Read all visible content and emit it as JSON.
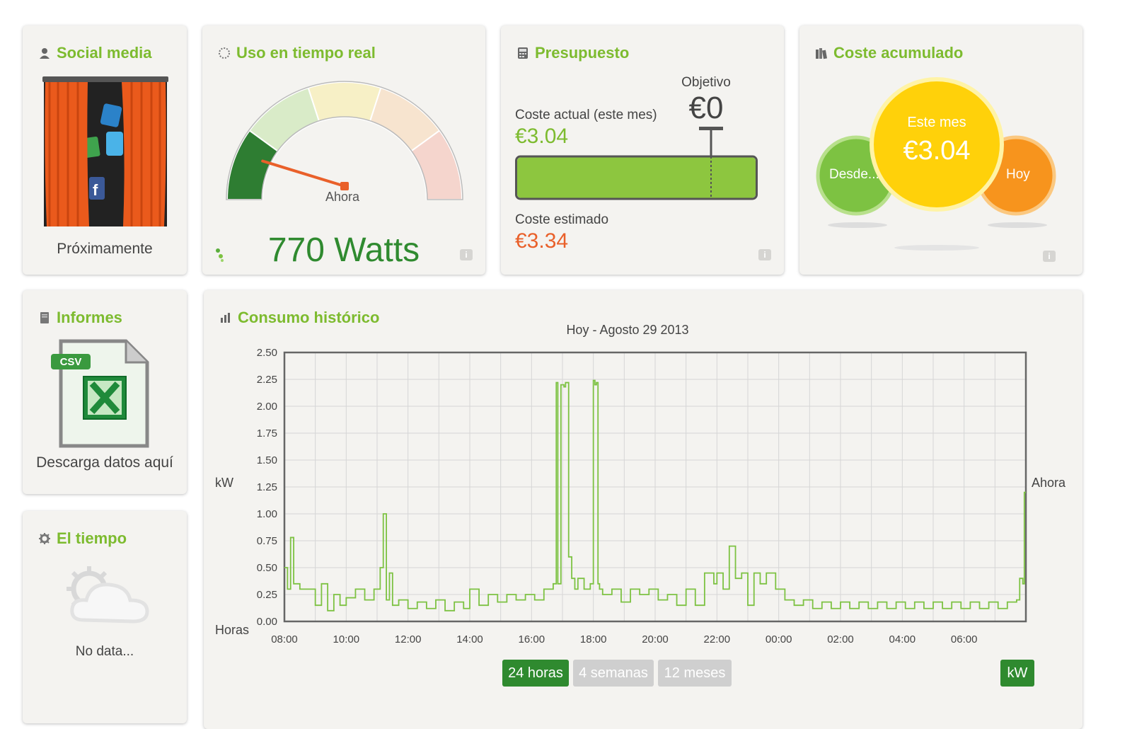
{
  "social": {
    "title": "Social media",
    "label": "Próximamente"
  },
  "realtime": {
    "title": "Uso en tiempo real",
    "needle_label": "Ahora",
    "value": "770 Watts",
    "gauge_fraction": 0.14
  },
  "budget": {
    "title": "Presupuesto",
    "target_label": "Objetivo",
    "target_value": "€0",
    "current_label": "Coste actual (este mes)",
    "current_value": "€3.04",
    "estimate_label": "Coste estimado",
    "estimate_value": "€3.34",
    "bar_fill_fraction": 1.0
  },
  "cumulative": {
    "title": "Coste acumulado",
    "left_bubble": "Desde...",
    "center_label": "Este mes",
    "center_value": "€3.04",
    "right_bubble": "Hoy"
  },
  "reports": {
    "title": "Informes",
    "badge": "CSV",
    "label": "Descarga datos aquí"
  },
  "weather": {
    "title": "El tiempo",
    "label": "No data..."
  },
  "history": {
    "title": "Consumo histórico",
    "buttons": [
      "24 horas",
      "4 semanas",
      "12 meses"
    ],
    "unit_button": "kW"
  },
  "chart_data": {
    "type": "line",
    "title": "Hoy - Agosto 29 2013",
    "ylabel": "kW",
    "xlabel": "Horas",
    "end_label": "Ahora",
    "ylim": [
      0,
      2.5
    ],
    "yticks": [
      "0.00",
      "0.25",
      "0.50",
      "0.75",
      "1.00",
      "1.25",
      "1.50",
      "1.75",
      "2.00",
      "2.25",
      "2.50"
    ],
    "xticks": [
      "08:00",
      "10:00",
      "12:00",
      "14:00",
      "16:00",
      "18:00",
      "20:00",
      "22:00",
      "00:00",
      "02:00",
      "04:00",
      "06:00"
    ],
    "xlim_hours": [
      8,
      32
    ],
    "grid": true,
    "series": [
      {
        "color": "#7dc242",
        "x": [
          8.0,
          8.1,
          8.2,
          8.3,
          8.5,
          8.7,
          9.0,
          9.2,
          9.4,
          9.6,
          9.8,
          10.0,
          10.3,
          10.6,
          10.9,
          11.1,
          11.2,
          11.3,
          11.4,
          11.5,
          11.7,
          12.0,
          12.3,
          12.6,
          12.9,
          13.2,
          13.5,
          13.8,
          14.0,
          14.3,
          14.6,
          14.9,
          15.2,
          15.5,
          15.8,
          16.1,
          16.4,
          16.7,
          16.8,
          16.85,
          16.95,
          17.05,
          17.1,
          17.2,
          17.3,
          17.4,
          17.5,
          17.7,
          17.9,
          18.0,
          18.05,
          18.1,
          18.15,
          18.2,
          18.3,
          18.6,
          18.9,
          19.2,
          19.5,
          19.8,
          20.1,
          20.4,
          20.7,
          21.0,
          21.3,
          21.6,
          21.9,
          22.0,
          22.2,
          22.4,
          22.6,
          22.8,
          23.0,
          23.2,
          23.4,
          23.6,
          23.9,
          24.2,
          24.5,
          24.8,
          25.1,
          25.4,
          25.7,
          26.0,
          26.3,
          26.6,
          26.9,
          27.2,
          27.5,
          27.8,
          28.1,
          28.4,
          28.7,
          29.0,
          29.3,
          29.6,
          29.9,
          30.2,
          30.5,
          30.8,
          31.1,
          31.4,
          31.7,
          31.8,
          31.9,
          31.95,
          32.0
        ],
        "values": [
          0.5,
          0.3,
          0.78,
          0.35,
          0.3,
          0.3,
          0.15,
          0.35,
          0.1,
          0.25,
          0.15,
          0.22,
          0.3,
          0.2,
          0.3,
          0.5,
          1.0,
          0.2,
          0.45,
          0.15,
          0.2,
          0.12,
          0.18,
          0.12,
          0.2,
          0.1,
          0.18,
          0.12,
          0.3,
          0.15,
          0.25,
          0.18,
          0.25,
          0.2,
          0.25,
          0.2,
          0.3,
          0.35,
          2.22,
          0.35,
          2.2,
          2.18,
          2.22,
          0.6,
          0.4,
          0.3,
          0.4,
          0.3,
          0.35,
          2.24,
          2.2,
          2.22,
          0.35,
          0.3,
          0.25,
          0.3,
          0.18,
          0.3,
          0.25,
          0.3,
          0.2,
          0.25,
          0.15,
          0.3,
          0.15,
          0.45,
          0.35,
          0.45,
          0.3,
          0.7,
          0.4,
          0.45,
          0.15,
          0.45,
          0.35,
          0.45,
          0.3,
          0.2,
          0.15,
          0.2,
          0.12,
          0.18,
          0.12,
          0.18,
          0.12,
          0.18,
          0.12,
          0.18,
          0.12,
          0.18,
          0.12,
          0.18,
          0.12,
          0.18,
          0.12,
          0.18,
          0.12,
          0.18,
          0.12,
          0.18,
          0.12,
          0.18,
          0.2,
          0.4,
          0.35,
          1.2,
          1.2
        ]
      }
    ]
  }
}
